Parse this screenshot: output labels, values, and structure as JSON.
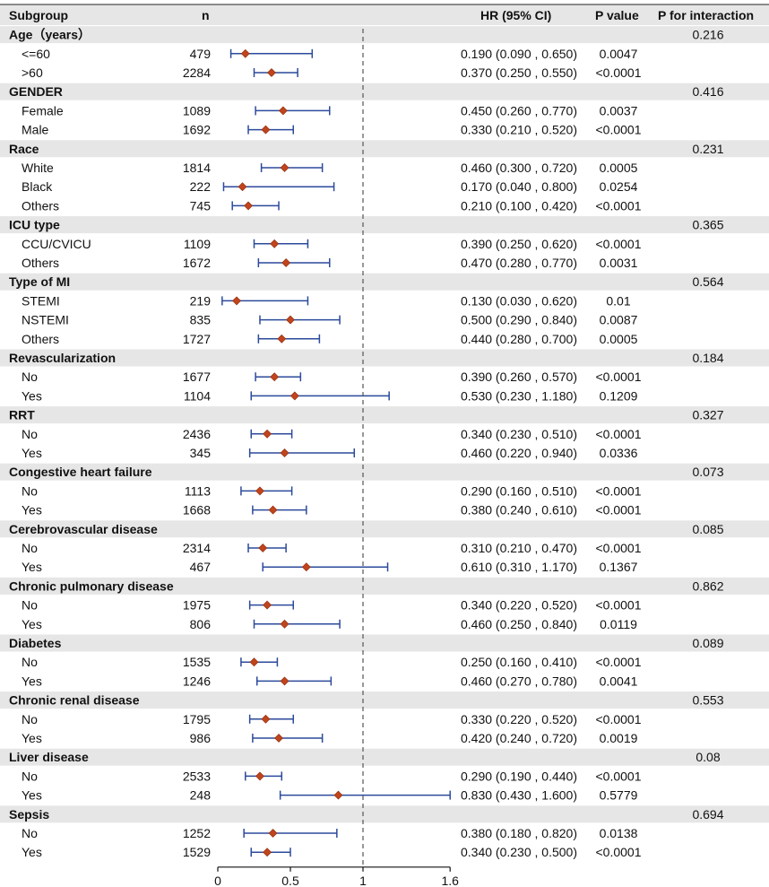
{
  "headers": {
    "subgroup": "Subgroup",
    "n": "n",
    "hr": "HR (95% CI)",
    "p": "P value",
    "pint": "P for interaction"
  },
  "colors": {
    "header_band": "#e6e6e6",
    "group_band": "#e6e6e6",
    "ci_line": "#2b4a9b",
    "point": "#c0441c",
    "reference_line": "#555555",
    "axis": "#111111"
  },
  "chart_data": {
    "type": "forest",
    "x_axis": {
      "ticks": [
        0,
        0.5,
        1,
        1.6
      ],
      "tick_labels": [
        "0",
        "0.5",
        "1",
        "1.6"
      ],
      "range": [
        0,
        1.6
      ]
    },
    "reference_value": 1,
    "groups": [
      {
        "name": "Age（years）",
        "p_interaction": "0.216",
        "rows": [
          {
            "label": "<=60",
            "n": "479",
            "hr": 0.19,
            "lower": 0.09,
            "upper": 0.65,
            "hr_text": "0.190 (0.090 , 0.650)",
            "p": "0.0047"
          },
          {
            "label": ">60",
            "n": "2284",
            "hr": 0.37,
            "lower": 0.25,
            "upper": 0.55,
            "hr_text": "0.370 (0.250 , 0.550)",
            "p": "<0.0001"
          }
        ]
      },
      {
        "name": "GENDER",
        "p_interaction": "0.416",
        "rows": [
          {
            "label": "Female",
            "n": "1089",
            "hr": 0.45,
            "lower": 0.26,
            "upper": 0.77,
            "hr_text": "0.450 (0.260 , 0.770)",
            "p": "0.0037"
          },
          {
            "label": "Male",
            "n": "1692",
            "hr": 0.33,
            "lower": 0.21,
            "upper": 0.52,
            "hr_text": "0.330 (0.210 , 0.520)",
            "p": "<0.0001"
          }
        ]
      },
      {
        "name": "Race",
        "p_interaction": "0.231",
        "rows": [
          {
            "label": "White",
            "n": "1814",
            "hr": 0.46,
            "lower": 0.3,
            "upper": 0.72,
            "hr_text": "0.460 (0.300 , 0.720)",
            "p": "0.0005"
          },
          {
            "label": "Black",
            "n": "222",
            "hr": 0.17,
            "lower": 0.04,
            "upper": 0.8,
            "hr_text": "0.170 (0.040 , 0.800)",
            "p": "0.0254"
          },
          {
            "label": "Others",
            "n": "745",
            "hr": 0.21,
            "lower": 0.1,
            "upper": 0.42,
            "hr_text": "0.210 (0.100 , 0.420)",
            "p": "<0.0001"
          }
        ]
      },
      {
        "name": "ICU type",
        "p_interaction": "0.365",
        "rows": [
          {
            "label": "CCU/CVICU",
            "n": "1109",
            "hr": 0.39,
            "lower": 0.25,
            "upper": 0.62,
            "hr_text": "0.390 (0.250 , 0.620)",
            "p": "<0.0001"
          },
          {
            "label": "Others",
            "n": "1672",
            "hr": 0.47,
            "lower": 0.28,
            "upper": 0.77,
            "hr_text": "0.470 (0.280 , 0.770)",
            "p": "0.0031"
          }
        ]
      },
      {
        "name": "Type of MI",
        "p_interaction": "0.564",
        "rows": [
          {
            "label": "STEMI",
            "n": "219",
            "hr": 0.13,
            "lower": 0.03,
            "upper": 0.62,
            "hr_text": "0.130 (0.030 , 0.620)",
            "p": "0.01"
          },
          {
            "label": "NSTEMI",
            "n": "835",
            "hr": 0.5,
            "lower": 0.29,
            "upper": 0.84,
            "hr_text": "0.500 (0.290 , 0.840)",
            "p": "0.0087"
          },
          {
            "label": "Others",
            "n": "1727",
            "hr": 0.44,
            "lower": 0.28,
            "upper": 0.7,
            "hr_text": "0.440 (0.280 , 0.700)",
            "p": "0.0005"
          }
        ]
      },
      {
        "name": "Revascularization",
        "p_interaction": "0.184",
        "rows": [
          {
            "label": "No",
            "n": "1677",
            "hr": 0.39,
            "lower": 0.26,
            "upper": 0.57,
            "hr_text": "0.390 (0.260 , 0.570)",
            "p": "<0.0001"
          },
          {
            "label": "Yes",
            "n": "1104",
            "hr": 0.53,
            "lower": 0.23,
            "upper": 1.18,
            "hr_text": "0.530 (0.230 , 1.180)",
            "p": "0.1209"
          }
        ]
      },
      {
        "name": "RRT",
        "p_interaction": "0.327",
        "rows": [
          {
            "label": "No",
            "n": "2436",
            "hr": 0.34,
            "lower": 0.23,
            "upper": 0.51,
            "hr_text": "0.340 (0.230 , 0.510)",
            "p": "<0.0001"
          },
          {
            "label": "Yes",
            "n": "345",
            "hr": 0.46,
            "lower": 0.22,
            "upper": 0.94,
            "hr_text": "0.460 (0.220 , 0.940)",
            "p": "0.0336"
          }
        ]
      },
      {
        "name": "Congestive heart failure",
        "p_interaction": "0.073",
        "rows": [
          {
            "label": "No",
            "n": "1113",
            "hr": 0.29,
            "lower": 0.16,
            "upper": 0.51,
            "hr_text": "0.290 (0.160 , 0.510)",
            "p": "<0.0001"
          },
          {
            "label": "Yes",
            "n": "1668",
            "hr": 0.38,
            "lower": 0.24,
            "upper": 0.61,
            "hr_text": "0.380 (0.240 , 0.610)",
            "p": "<0.0001"
          }
        ]
      },
      {
        "name": "Cerebrovascular disease",
        "p_interaction": "0.085",
        "rows": [
          {
            "label": "No",
            "n": "2314",
            "hr": 0.31,
            "lower": 0.21,
            "upper": 0.47,
            "hr_text": "0.310 (0.210 , 0.470)",
            "p": "<0.0001"
          },
          {
            "label": "Yes",
            "n": "467",
            "hr": 0.61,
            "lower": 0.31,
            "upper": 1.17,
            "hr_text": "0.610 (0.310 , 1.170)",
            "p": "0.1367"
          }
        ]
      },
      {
        "name": "Chronic pulmonary disease",
        "p_interaction": "0.862",
        "rows": [
          {
            "label": "No",
            "n": "1975",
            "hr": 0.34,
            "lower": 0.22,
            "upper": 0.52,
            "hr_text": "0.340 (0.220 , 0.520)",
            "p": "<0.0001"
          },
          {
            "label": "Yes",
            "n": "806",
            "hr": 0.46,
            "lower": 0.25,
            "upper": 0.84,
            "hr_text": "0.460 (0.250 , 0.840)",
            "p": "0.0119"
          }
        ]
      },
      {
        "name": "Diabetes",
        "p_interaction": "0.089",
        "rows": [
          {
            "label": "No",
            "n": "1535",
            "hr": 0.25,
            "lower": 0.16,
            "upper": 0.41,
            "hr_text": "0.250 (0.160 , 0.410)",
            "p": "<0.0001"
          },
          {
            "label": "Yes",
            "n": "1246",
            "hr": 0.46,
            "lower": 0.27,
            "upper": 0.78,
            "hr_text": "0.460 (0.270 , 0.780)",
            "p": "0.0041"
          }
        ]
      },
      {
        "name": "Chronic renal disease",
        "p_interaction": "0.553",
        "rows": [
          {
            "label": "No",
            "n": "1795",
            "hr": 0.33,
            "lower": 0.22,
            "upper": 0.52,
            "hr_text": "0.330 (0.220 , 0.520)",
            "p": "<0.0001"
          },
          {
            "label": "Yes",
            "n": "986",
            "hr": 0.42,
            "lower": 0.24,
            "upper": 0.72,
            "hr_text": "0.420 (0.240 , 0.720)",
            "p": "0.0019"
          }
        ]
      },
      {
        "name": "Liver disease",
        "p_interaction": "0.08",
        "rows": [
          {
            "label": "No",
            "n": "2533",
            "hr": 0.29,
            "lower": 0.19,
            "upper": 0.44,
            "hr_text": "0.290 (0.190 , 0.440)",
            "p": "<0.0001"
          },
          {
            "label": "Yes",
            "n": "248",
            "hr": 0.83,
            "lower": 0.43,
            "upper": 1.6,
            "hr_text": "0.830 (0.430 , 1.600)",
            "p": "0.5779"
          }
        ]
      },
      {
        "name": "Sepsis",
        "p_interaction": "0.694",
        "rows": [
          {
            "label": "No",
            "n": "1252",
            "hr": 0.38,
            "lower": 0.18,
            "upper": 0.82,
            "hr_text": "0.380 (0.180 , 0.820)",
            "p": "0.0138"
          },
          {
            "label": "Yes",
            "n": "1529",
            "hr": 0.34,
            "lower": 0.23,
            "upper": 0.5,
            "hr_text": "0.340 (0.230 , 0.500)",
            "p": "<0.0001"
          }
        ]
      }
    ]
  }
}
